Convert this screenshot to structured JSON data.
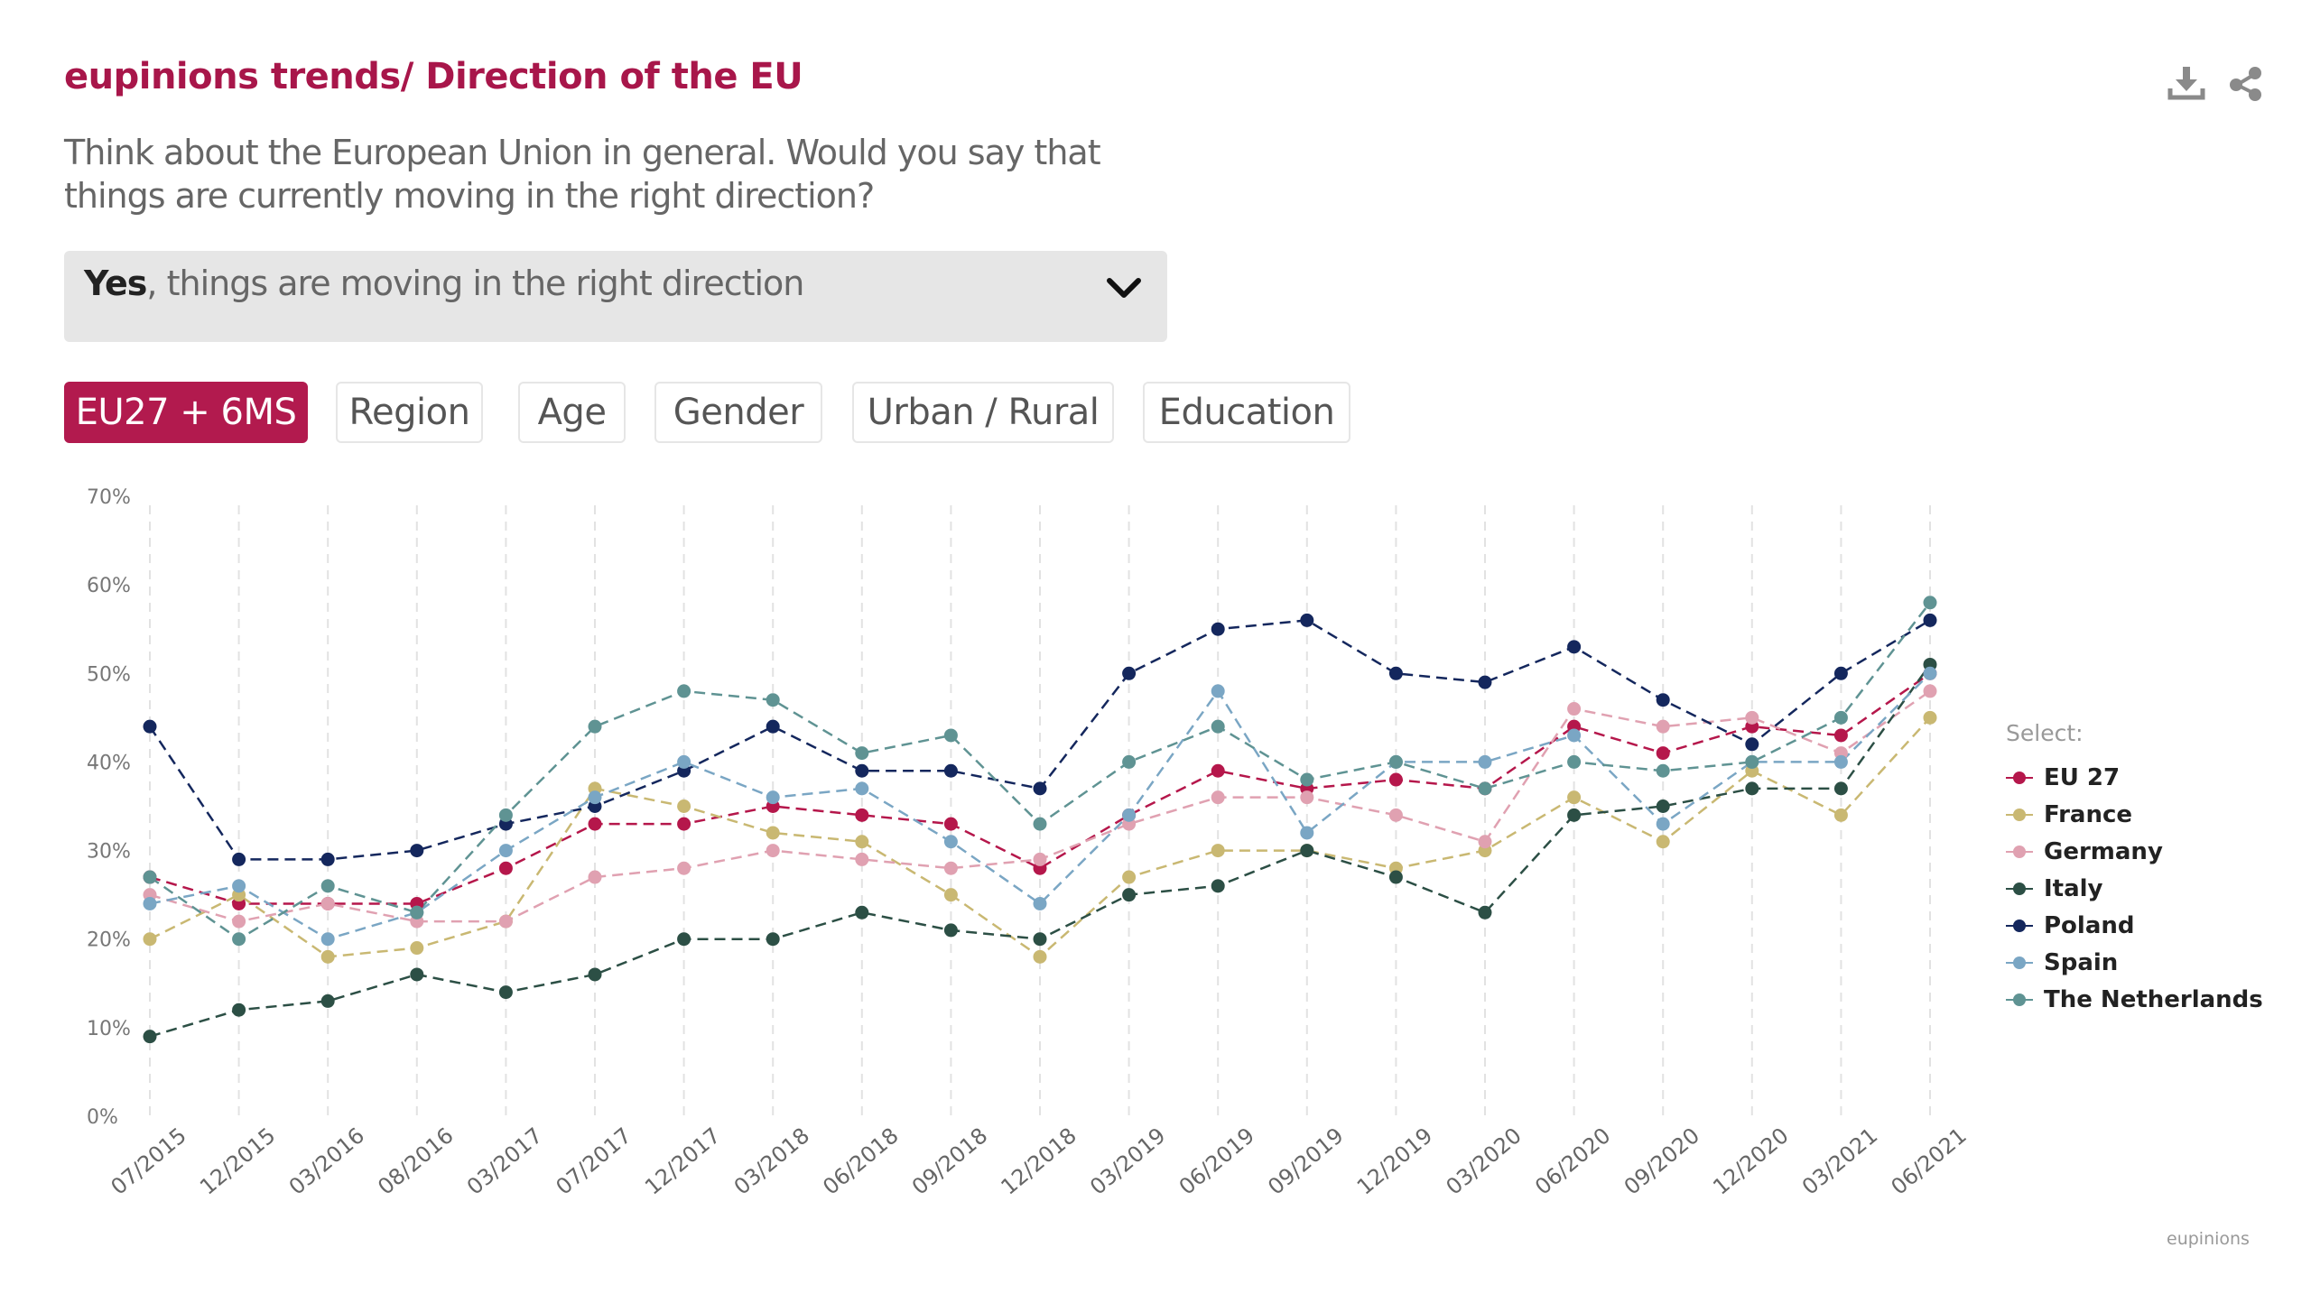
{
  "header": {
    "title": "eupinions trends/ Direction of the EU",
    "question": "Think about the European Union in general. Would you say that things are currently moving in the right direction?",
    "download_icon": "download-icon",
    "share_icon": "share-icon"
  },
  "dropdown": {
    "selected_bold": "Yes",
    "selected_rest": ", things are moving in the right direction",
    "icon": "chevron-down-icon"
  },
  "tabs": [
    {
      "label": "EU27 + 6MS",
      "active": true
    },
    {
      "label": "Region",
      "active": false
    },
    {
      "label": "Age",
      "active": false
    },
    {
      "label": "Gender",
      "active": false
    },
    {
      "label": "Urban / Rural",
      "active": false
    },
    {
      "label": "Education",
      "active": false
    }
  ],
  "legend_title": "Select:",
  "credit": "eupinions",
  "colors": {
    "accent": "#a8164a",
    "tab_active_bg": "#b21a4e",
    "dropdown_bg": "#e6e6e6"
  },
  "chart_data": {
    "type": "line",
    "line_style": "dashed",
    "x": [
      "07/2015",
      "12/2015",
      "03/2016",
      "08/2016",
      "03/2017",
      "07/2017",
      "12/2017",
      "03/2018",
      "06/2018",
      "09/2018",
      "12/2018",
      "03/2019",
      "06/2019",
      "09/2019",
      "12/2019",
      "03/2020",
      "06/2020",
      "09/2020",
      "12/2020",
      "03/2021",
      "06/2021"
    ],
    "ylim": [
      0,
      70
    ],
    "yticks": [
      0,
      10,
      20,
      30,
      40,
      50,
      60,
      70
    ],
    "ytick_labels": [
      "0%",
      "10%",
      "20%",
      "30%",
      "40%",
      "50%",
      "60%",
      "70%"
    ],
    "grid": "vertical dashed",
    "legend_position": "right",
    "series": [
      {
        "name": "EU 27",
        "color": "#b5174b",
        "values": [
          27,
          24,
          24,
          24,
          28,
          33,
          33,
          35,
          34,
          33,
          28,
          34,
          39,
          37,
          38,
          37,
          44,
          41,
          44,
          43,
          50
        ]
      },
      {
        "name": "France",
        "color": "#c9b872",
        "values": [
          20,
          25,
          18,
          19,
          22,
          37,
          35,
          32,
          31,
          25,
          18,
          27,
          30,
          30,
          28,
          30,
          36,
          31,
          39,
          34,
          45
        ]
      },
      {
        "name": "Germany",
        "color": "#e0a1b1",
        "values": [
          25,
          22,
          24,
          22,
          22,
          27,
          28,
          30,
          29,
          28,
          29,
          33,
          36,
          36,
          34,
          31,
          46,
          44,
          45,
          41,
          48
        ]
      },
      {
        "name": "Italy",
        "color": "#2c4f45",
        "values": [
          9,
          12,
          13,
          16,
          14,
          16,
          20,
          20,
          23,
          21,
          20,
          25,
          26,
          30,
          27,
          23,
          34,
          35,
          37,
          37,
          51
        ]
      },
      {
        "name": "Poland",
        "color": "#14275d",
        "values": [
          44,
          29,
          29,
          30,
          33,
          35,
          39,
          44,
          39,
          39,
          37,
          50,
          55,
          56,
          50,
          49,
          53,
          47,
          42,
          50,
          56
        ]
      },
      {
        "name": "Spain",
        "color": "#7aa6c4",
        "values": [
          24,
          26,
          20,
          23,
          30,
          36,
          40,
          36,
          37,
          31,
          24,
          34,
          48,
          32,
          40,
          40,
          43,
          33,
          40,
          40,
          50
        ]
      },
      {
        "name": "The Netherlands",
        "color": "#5f9393",
        "values": [
          27,
          20,
          26,
          23,
          34,
          44,
          48,
          47,
          41,
          43,
          33,
          40,
          44,
          38,
          40,
          37,
          40,
          39,
          40,
          45,
          58
        ]
      }
    ]
  }
}
